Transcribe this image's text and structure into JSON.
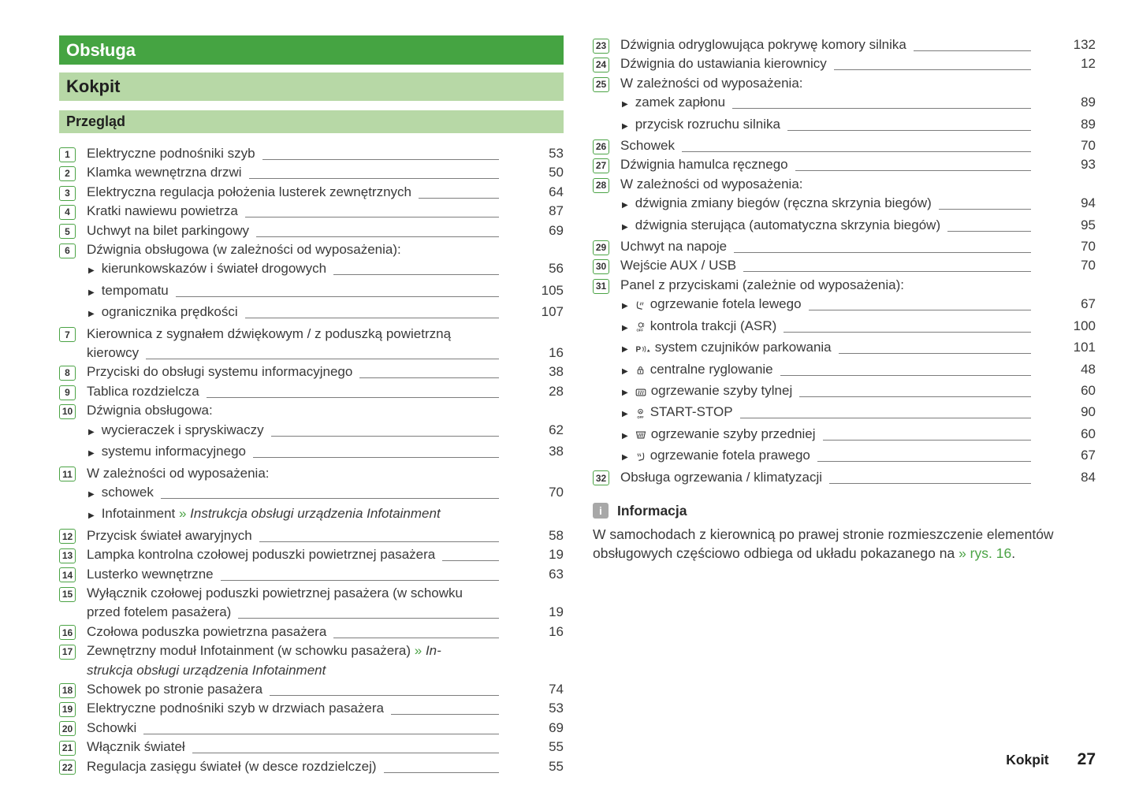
{
  "headers": {
    "chapter": "Obsługa",
    "section": "Kokpit",
    "subsection": "Przegląd"
  },
  "colors": {
    "green_dark": "#45a442",
    "green_light": "#b7d8a6",
    "green_accent": "#4ba345",
    "text": "#3a3a3a",
    "leader_line": "#7d7d7d",
    "info_icon_gray": "#a8a8a8"
  },
  "toc_left": [
    {
      "num": "1",
      "segments": [
        {
          "t": "Elektryczne podnośniki szyb"
        }
      ],
      "page": "53"
    },
    {
      "num": "2",
      "segments": [
        {
          "t": "Klamka wewnętrzna drzwi"
        }
      ],
      "page": "50"
    },
    {
      "num": "3",
      "segments": [
        {
          "t": "Elektryczna regulacja położenia lusterek zewnętrznych"
        }
      ],
      "page": "64"
    },
    {
      "num": "4",
      "segments": [
        {
          "t": "Kratki nawiewu powietrza"
        }
      ],
      "page": "87"
    },
    {
      "num": "5",
      "segments": [
        {
          "t": "Uchwyt na bilet parkingowy"
        }
      ],
      "page": "69"
    },
    {
      "num": "6",
      "segments": [
        {
          "t": "Dźwignia obsługowa (w zależności od wyposażenia):"
        }
      ]
    },
    {
      "bullet": true,
      "segments": [
        {
          "t": "kierunkowskazów i świateł drogowych"
        }
      ],
      "page": "56"
    },
    {
      "bullet": true,
      "segments": [
        {
          "t": "tempomatu"
        }
      ],
      "page": "105"
    },
    {
      "bullet": true,
      "segments": [
        {
          "t": "ogranicznika prędkości"
        }
      ],
      "page": "107"
    },
    {
      "num": "7",
      "segments": [
        {
          "t": "Kierownica z sygnałem dźwiękowym / z poduszką powietrzną"
        }
      ]
    },
    {
      "cont": true,
      "segments": [
        {
          "t": "kierowcy"
        }
      ],
      "page": "16"
    },
    {
      "num": "8",
      "segments": [
        {
          "t": "Przyciski do obsługi systemu informacyjnego"
        }
      ],
      "page": "38"
    },
    {
      "num": "9",
      "segments": [
        {
          "t": "Tablica rozdzielcza"
        }
      ],
      "page": "28"
    },
    {
      "num": "10",
      "segments": [
        {
          "t": "Dźwignia obsługowa:"
        }
      ]
    },
    {
      "bullet": true,
      "segments": [
        {
          "t": "wycieraczek i spryskiwaczy"
        }
      ],
      "page": "62"
    },
    {
      "bullet": true,
      "segments": [
        {
          "t": "systemu informacyjnego"
        }
      ],
      "page": "38"
    },
    {
      "num": "11",
      "segments": [
        {
          "t": "W zależności od wyposażenia:"
        }
      ]
    },
    {
      "bullet": true,
      "segments": [
        {
          "t": "schowek"
        }
      ],
      "page": "70"
    },
    {
      "bullet": true,
      "segments": [
        {
          "t": "Infotainment "
        },
        {
          "t": "» ",
          "s": "g"
        },
        {
          "t": "Instrukcja obsługi urządzenia Infotainment",
          "s": "i"
        }
      ]
    },
    {
      "num": "12",
      "segments": [
        {
          "t": "Przycisk świateł awaryjnych"
        }
      ],
      "page": "58"
    },
    {
      "num": "13",
      "segments": [
        {
          "t": "Lampka kontrolna czołowej poduszki powietrznej pasażera"
        }
      ],
      "page": "19"
    },
    {
      "num": "14",
      "segments": [
        {
          "t": "Lusterko wewnętrzne"
        }
      ],
      "page": "63"
    },
    {
      "num": "15",
      "segments": [
        {
          "t": "Wyłącznik czołowej poduszki powietrznej pasażera (w schowku"
        }
      ]
    },
    {
      "cont": true,
      "segments": [
        {
          "t": "przed fotelem pasażera)"
        }
      ],
      "page": "19"
    },
    {
      "num": "16",
      "segments": [
        {
          "t": "Czołowa poduszka powietrzna pasażera"
        }
      ],
      "page": "16"
    },
    {
      "num": "17",
      "segments": [
        {
          "t": "Zewnętrzny moduł Infotainment (w schowku pasażera) "
        },
        {
          "t": "» ",
          "s": "g"
        },
        {
          "t": "In-",
          "s": "i"
        }
      ]
    },
    {
      "cont": true,
      "segments": [
        {
          "t": "strukcja obsługi urządzenia Infotainment",
          "s": "i"
        }
      ]
    },
    {
      "num": "18",
      "segments": [
        {
          "t": "Schowek po stronie pasażera"
        }
      ],
      "page": "74"
    },
    {
      "num": "19",
      "segments": [
        {
          "t": "Elektryczne podnośniki szyb w drzwiach pasażera"
        }
      ],
      "page": "53"
    },
    {
      "num": "20",
      "segments": [
        {
          "t": "Schowki"
        }
      ],
      "page": "69"
    },
    {
      "num": "21",
      "segments": [
        {
          "t": "Włącznik świateł"
        }
      ],
      "page": "55"
    },
    {
      "num": "22",
      "segments": [
        {
          "t": "Regulacja zasięgu świateł (w desce rozdzielczej)"
        }
      ],
      "page": "55"
    }
  ],
  "toc_right": [
    {
      "num": "23",
      "segments": [
        {
          "t": "Dźwignia odryglowująca pokrywę komory silnika"
        }
      ],
      "page": "132"
    },
    {
      "num": "24",
      "segments": [
        {
          "t": "Dźwignia do ustawiania kierownicy"
        }
      ],
      "page": "12"
    },
    {
      "num": "25",
      "segments": [
        {
          "t": "W zależności od wyposażenia:"
        }
      ]
    },
    {
      "bullet": true,
      "segments": [
        {
          "t": "zamek zapłonu"
        }
      ],
      "page": "89"
    },
    {
      "bullet": true,
      "segments": [
        {
          "t": "przycisk rozruchu silnika"
        }
      ],
      "page": "89"
    },
    {
      "num": "26",
      "segments": [
        {
          "t": "Schowek"
        }
      ],
      "page": "70"
    },
    {
      "num": "27",
      "segments": [
        {
          "t": "Dźwignia hamulca ręcznego"
        }
      ],
      "page": "93"
    },
    {
      "num": "28",
      "segments": [
        {
          "t": "W zależności od wyposażenia:"
        }
      ]
    },
    {
      "bullet": true,
      "segments": [
        {
          "t": "dźwignia zmiany biegów (ręczna skrzynia biegów)"
        }
      ],
      "page": "94"
    },
    {
      "bullet": true,
      "segments": [
        {
          "t": "dźwignia sterująca (automatyczna skrzynia biegów)"
        }
      ],
      "page": "95"
    },
    {
      "num": "29",
      "segments": [
        {
          "t": "Uchwyt na napoje"
        }
      ],
      "page": "70"
    },
    {
      "num": "30",
      "segments": [
        {
          "t": "Wejście AUX / USB"
        }
      ],
      "page": "70"
    },
    {
      "num": "31",
      "segments": [
        {
          "t": "Panel z przyciskami (zależnie od wyposażenia):"
        }
      ]
    },
    {
      "bullet": true,
      "icon": "seat-heating-left-icon",
      "segments": [
        {
          "t": "ogrzewanie fotela lewego"
        }
      ],
      "page": "67"
    },
    {
      "bullet": true,
      "icon": "traction-control-asr-off-icon",
      "segments": [
        {
          "t": "kontrola trakcji (ASR)"
        }
      ],
      "page": "100"
    },
    {
      "bullet": true,
      "icon": "parking-sensors-icon",
      "segments": [
        {
          "t": "system czujników parkowania"
        }
      ],
      "page": "101"
    },
    {
      "bullet": true,
      "icon": "central-locking-icon",
      "segments": [
        {
          "t": "centralne ryglowanie"
        }
      ],
      "page": "48"
    },
    {
      "bullet": true,
      "icon": "rear-window-heating-icon",
      "segments": [
        {
          "t": "ogrzewanie szyby tylnej"
        }
      ],
      "page": "60"
    },
    {
      "bullet": true,
      "icon": "start-stop-off-icon",
      "segments": [
        {
          "t": "START-STOP"
        }
      ],
      "page": "90"
    },
    {
      "bullet": true,
      "icon": "front-window-heating-icon",
      "segments": [
        {
          "t": "ogrzewanie szyby przedniej"
        }
      ],
      "page": "60"
    },
    {
      "bullet": true,
      "icon": "seat-heating-right-icon",
      "segments": [
        {
          "t": "ogrzewanie fotela prawego"
        }
      ],
      "page": "67"
    },
    {
      "num": "32",
      "segments": [
        {
          "t": "Obsługa ogrzewania / klimatyzacji"
        }
      ],
      "page": "84"
    }
  ],
  "info": {
    "icon": "info-icon",
    "icon_glyph": "i",
    "title": "Informacja",
    "segments": [
      {
        "t": "W samochodach z kierownicą po prawej stronie rozmieszczenie elementów obsługowych częściowo odbiega od układu pokazanego na "
      },
      {
        "t": "» rys. 16",
        "s": "g"
      },
      {
        "t": "."
      }
    ]
  },
  "footer": {
    "section_label": "Kokpit",
    "page_number": "27"
  }
}
